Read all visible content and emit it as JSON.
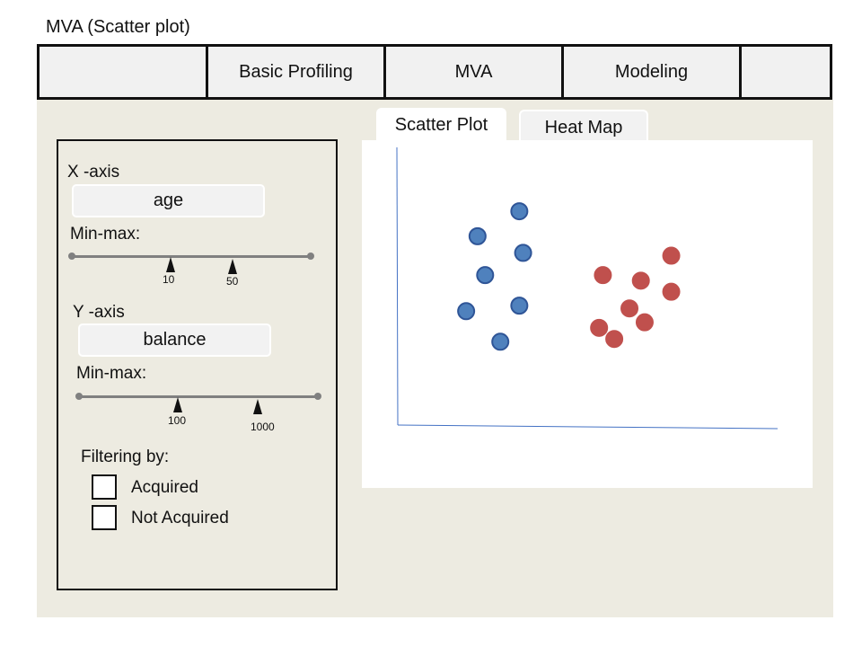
{
  "page": {
    "title": "MVA (Scatter plot)"
  },
  "nav_tabs": [
    {
      "label": ""
    },
    {
      "label": "Basic Profiling"
    },
    {
      "label": "MVA"
    },
    {
      "label": "Modeling"
    },
    {
      "label": ""
    }
  ],
  "controls": {
    "x_axis": {
      "label": "X -axis",
      "value": "age",
      "minmax_label": "Min-max:",
      "min": "10",
      "max": "50"
    },
    "y_axis": {
      "label": "Y -axis",
      "value": "balance",
      "minmax_label": "Min-max:",
      "min": "100",
      "max": "1000"
    },
    "filter": {
      "label": "Filtering by:",
      "options": [
        {
          "label": "Acquired",
          "checked": false
        },
        {
          "label": "Not Acquired",
          "checked": false
        }
      ]
    }
  },
  "plot_tabs": [
    {
      "label": "Scatter Plot",
      "active": true
    },
    {
      "label": "Heat Map",
      "active": false
    }
  ],
  "colors": {
    "series_blue": "#4f81bd",
    "series_blue_stroke": "#2f5597",
    "series_red": "#c0504d",
    "axis": "#4472c4"
  },
  "chart_data": {
    "type": "scatter",
    "series": [
      {
        "color": "#4f81bd",
        "points": [
          {
            "x": 0.32,
            "y": 0.77
          },
          {
            "x": 0.21,
            "y": 0.68
          },
          {
            "x": 0.33,
            "y": 0.62
          },
          {
            "x": 0.23,
            "y": 0.54
          },
          {
            "x": 0.32,
            "y": 0.43
          },
          {
            "x": 0.18,
            "y": 0.41
          },
          {
            "x": 0.27,
            "y": 0.3
          }
        ]
      },
      {
        "color": "#c0504d",
        "points": [
          {
            "x": 0.72,
            "y": 0.61
          },
          {
            "x": 0.54,
            "y": 0.54
          },
          {
            "x": 0.64,
            "y": 0.52
          },
          {
            "x": 0.72,
            "y": 0.48
          },
          {
            "x": 0.61,
            "y": 0.42
          },
          {
            "x": 0.65,
            "y": 0.37
          },
          {
            "x": 0.53,
            "y": 0.35
          },
          {
            "x": 0.57,
            "y": 0.31
          }
        ]
      }
    ]
  }
}
